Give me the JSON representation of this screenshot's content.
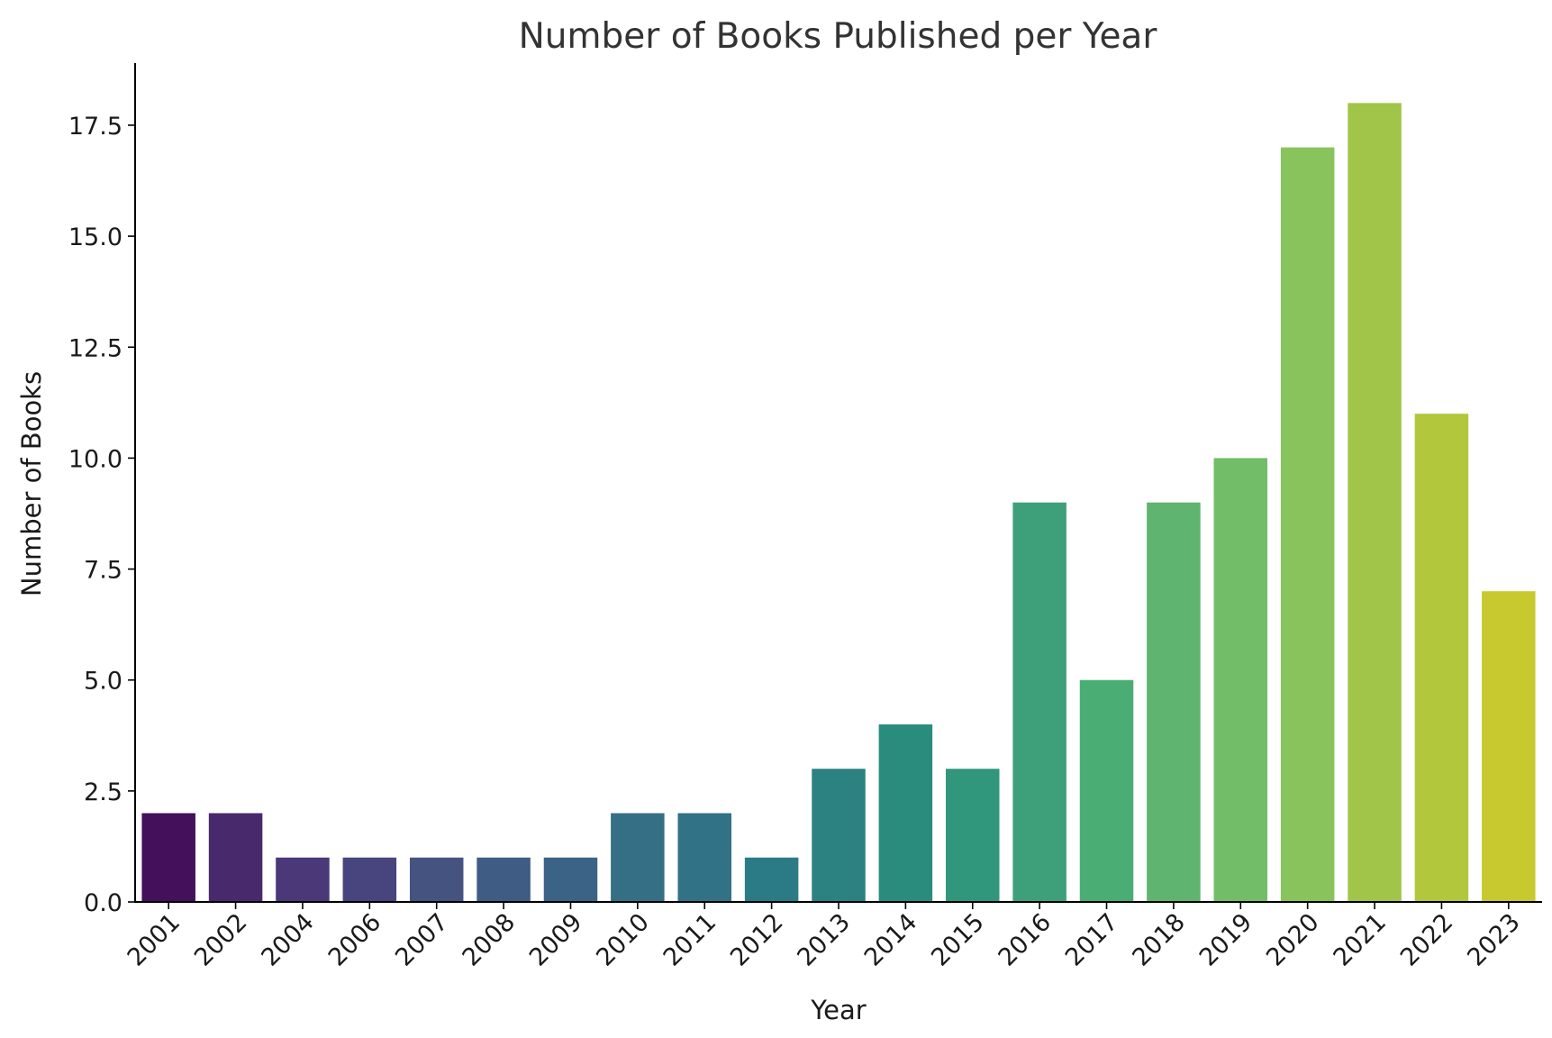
{
  "chart_data": {
    "type": "bar",
    "title": "Number of Books Published per Year",
    "xlabel": "Year",
    "ylabel": "Number of Books",
    "categories": [
      "2001",
      "2002",
      "2004",
      "2006",
      "2007",
      "2008",
      "2009",
      "2010",
      "2011",
      "2012",
      "2013",
      "2014",
      "2015",
      "2016",
      "2017",
      "2018",
      "2019",
      "2020",
      "2021",
      "2022",
      "2023"
    ],
    "values": [
      2,
      2,
      1,
      1,
      1,
      1,
      1,
      2,
      2,
      1,
      3,
      4,
      3,
      9,
      5,
      9,
      10,
      17,
      18,
      11,
      7
    ],
    "colors": [
      "#440f5b",
      "#482a6c",
      "#4a3879",
      "#48447e",
      "#455381",
      "#3f5c85",
      "#3a6385",
      "#356f86",
      "#317286",
      "#2b7b86",
      "#2c8280",
      "#2a8c7c",
      "#30977c",
      "#3ea07a",
      "#4aad74",
      "#5fb46f",
      "#72bd68",
      "#89c35b",
      "#a0c549",
      "#b2c73c",
      "#c7c92e"
    ],
    "ylim": [
      0,
      18.9
    ],
    "yticks": [
      "0.0",
      "2.5",
      "5.0",
      "7.5",
      "10.0",
      "12.5",
      "15.0",
      "17.5"
    ],
    "grid": false,
    "legend": "none"
  }
}
